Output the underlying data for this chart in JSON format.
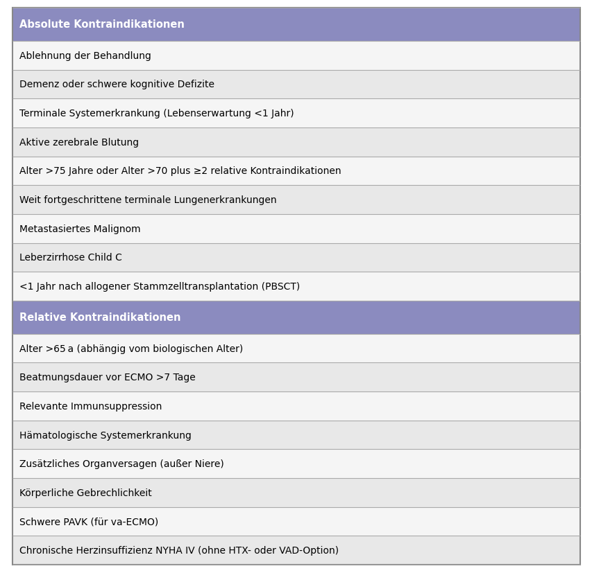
{
  "header1": "Absolute Kontraindikationen",
  "header2": "Relative Kontraindikationen",
  "absolute_rows": [
    "Ablehnung der Behandlung",
    "Demenz oder schwere kognitive Defizite",
    "Terminale Systemerkrankung (Lebenserwartung <1 Jahr)",
    "Aktive zerebrale Blutung",
    "Alter >75 Jahre oder Alter >70 plus ≥2 relative Kontraindikationen",
    "Weit fortgeschrittene terminale Lungenerkrankungen",
    "Metastasiertes Malignom",
    "Leberzirrhose Child C",
    "<1 Jahr nach allogener Stammzelltransplantation (PBSCT)"
  ],
  "relative_rows": [
    "Alter >65 a (abhängig vom biologischen Alter)",
    "Beatmungsdauer vor ECMO >7 Tage",
    "Relevante Immunsuppression",
    "Hämatologische Systemerkrankung",
    "Zusätzliches Organversagen (außer Niere)",
    "Körperliche Gebrechlichkeit",
    "Schwere PAVK (für va-ECMO)",
    "Chronische Herzinsuffizienz NYHA IV (ohne HTX- oder VAD-Option)"
  ],
  "header_bg": "#8b8bbf",
  "header_text": "#ffffff",
  "row_bg_odd": "#e8e8e8",
  "row_bg_even": "#f5f5f5",
  "border_color": "#aaaaaa",
  "text_color": "#000000",
  "header_fontsize": 10.5,
  "row_fontsize": 10.0,
  "outer_border_color": "#888888",
  "fig_bg": "#ffffff",
  "fig_width": 8.54,
  "fig_height": 8.28,
  "dpi": 100
}
